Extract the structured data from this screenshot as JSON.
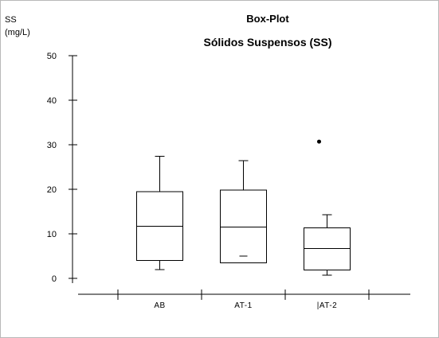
{
  "chart_data": {
    "type": "box",
    "title": "Box-Plot",
    "subtitle": "Sólidos Suspensos (SS)",
    "ylabel_line1": "SS",
    "ylabel_line2": "(mg/L)",
    "ylim": [
      0,
      50
    ],
    "yticks": [
      0,
      10,
      20,
      30,
      40,
      50
    ],
    "categories": [
      "AB",
      "AT-1",
      "|AT-2"
    ],
    "boxes": [
      {
        "category": "AB",
        "min": 2.0,
        "q1": 4.0,
        "median": 11.7,
        "q3": 19.5,
        "max": 27.4,
        "outliers": [],
        "extra_marks": []
      },
      {
        "category": "AT-1",
        "min": 3.5,
        "q1": 3.5,
        "median": 11.5,
        "q3": 19.8,
        "max": 26.4,
        "outliers": [],
        "extra_marks": [
          5.0
        ]
      },
      {
        "category": "|AT-2",
        "min": 0.7,
        "q1": 1.9,
        "median": 6.7,
        "q3": 11.3,
        "max": 14.3,
        "outliers": [
          30.7
        ],
        "extra_marks": []
      }
    ],
    "grid": false,
    "legend": "none"
  }
}
